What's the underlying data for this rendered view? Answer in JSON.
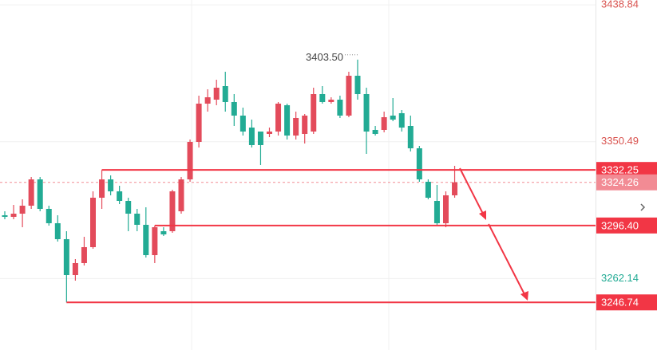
{
  "chart_data": {
    "type": "candlestick",
    "up_color": "#e34b5b",
    "down_color": "#22ab94",
    "ylim": [
      3216,
      3442
    ],
    "yticks": [
      3438.84,
      3350.49,
      3262.14
    ],
    "ytick_colors": [
      "#d9534f",
      "#d9534f",
      "#22ab94"
    ],
    "grid": true,
    "open": [
      3303.0,
      3301.97,
      3304.03,
      3309.18,
      3326.17,
      3307.12,
      3297.86,
      3287.56,
      3264.39,
      3272.12,
      3282.41,
      3314.33,
      3326.17,
      3318.45,
      3312.27,
      3304.03,
      3296.83,
      3277.26,
      3292.71,
      3292.71,
      3305.58,
      3326.17,
      3350.37,
      3375.08,
      3377.65,
      3386.4,
      3376.11,
      3367.35,
      3359.63,
      3357.06,
      3355.51,
      3357.06,
      3374.05,
      3354.48,
      3355.51,
      3357.06,
      3381.25,
      3376.11,
      3377.65,
      3367.35,
      3393.09,
      3381.25,
      3358.09,
      3358.09,
      3367.35,
      3368.9,
      3360.66,
      3346.25,
      3324.63,
      3312.27,
      3297.86,
      3315.87
    ],
    "high": [
      3305.58,
      3309.7,
      3313.3,
      3327.71,
      3327.71,
      3309.18,
      3303.0,
      3292.71,
      3274.69,
      3289.1,
      3318.45,
      3332.25,
      3328.74,
      3322.05,
      3314.33,
      3307.12,
      3308.15,
      3296.4,
      3295.28,
      3319.48,
      3327.71,
      3351.91,
      3380.22,
      3384.34,
      3390.52,
      3395.67,
      3381.25,
      3372.5,
      3364.78,
      3357.06,
      3359.63,
      3376.11,
      3375.08,
      3369.93,
      3368.38,
      3385.37,
      3386.4,
      3379.19,
      3380.22,
      3395.67,
      3403.5,
      3385.37,
      3360.66,
      3369.93,
      3378.68,
      3370.96,
      3367.35,
      3347.79,
      3326.17,
      3322.57,
      3318.45,
      3334.92
    ],
    "low": [
      3300.43,
      3300.43,
      3295.28,
      3307.12,
      3305.58,
      3296.31,
      3286.02,
      3246.74,
      3260.79,
      3270.57,
      3281.38,
      3307.12,
      3315.87,
      3310.21,
      3292.71,
      3292.71,
      3275.72,
      3272.12,
      3289.62,
      3291.68,
      3304.03,
      3324.63,
      3346.76,
      3369.93,
      3374.05,
      3369.93,
      3360.66,
      3354.48,
      3346.76,
      3335.44,
      3353.45,
      3354.48,
      3351.91,
      3351.91,
      3349.34,
      3355.51,
      3375.08,
      3375.08,
      3365.81,
      3366.32,
      3377.65,
      3342.64,
      3354.48,
      3356.54,
      3363.75,
      3357.06,
      3344.19,
      3324.63,
      3313.3,
      3296.83,
      3295.28,
      3314.33
    ],
    "close": [
      3301.97,
      3304.03,
      3309.18,
      3326.17,
      3307.12,
      3297.86,
      3287.56,
      3264.39,
      3272.12,
      3282.41,
      3314.33,
      3326.17,
      3318.45,
      3312.27,
      3304.03,
      3296.83,
      3277.26,
      3295.28,
      3290.65,
      3318.45,
      3326.17,
      3350.37,
      3375.08,
      3379.19,
      3385.37,
      3376.11,
      3367.35,
      3357.06,
      3348.31,
      3348.31,
      3357.06,
      3375.08,
      3354.48,
      3365.81,
      3367.35,
      3381.25,
      3376.11,
      3377.65,
      3367.35,
      3393.09,
      3381.25,
      3357.06,
      3355.51,
      3366.32,
      3364.78,
      3359.63,
      3346.25,
      3326.17,
      3314.33,
      3297.86,
      3315.87,
      3324.26
    ],
    "levels": [
      {
        "value": 3332.25,
        "label": "3332.25"
      },
      {
        "value": 3296.4,
        "label": "3296.40"
      },
      {
        "value": 3246.74,
        "label": "3246.74"
      }
    ],
    "level_color": "#f23645",
    "last_price": {
      "value": 3324.26,
      "label": "3324.26"
    },
    "last_price_color": "#f28b94",
    "max_annotation": {
      "value": 3403.5,
      "label": "3403.50"
    }
  }
}
